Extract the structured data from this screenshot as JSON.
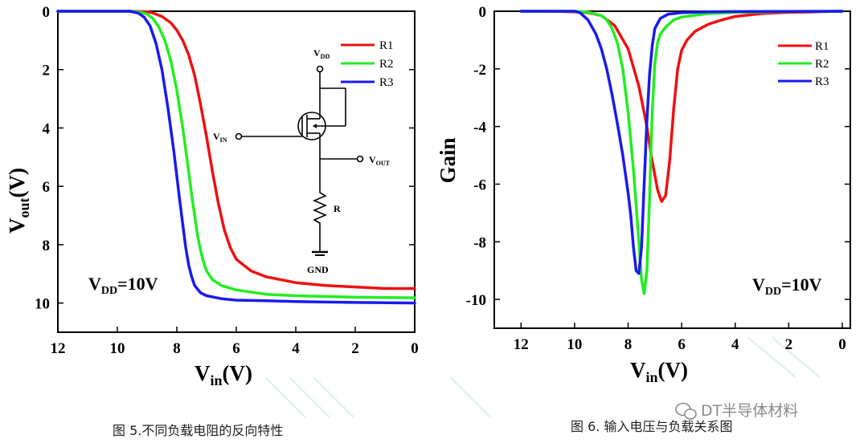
{
  "chart_data": [
    {
      "type": "line",
      "title": "",
      "xlabel": "V_in(V)",
      "ylabel": "V_out(V)",
      "xlim": [
        12,
        0
      ],
      "ylim": [
        0,
        11
      ],
      "x_reversed": true,
      "y_reversed": true,
      "xticks": [
        "12",
        "10",
        "8",
        "6",
        "4",
        "2",
        "0"
      ],
      "yticks": [
        "0",
        "2",
        "4",
        "6",
        "8",
        "10"
      ],
      "legend": {
        "position": "top-right",
        "entries": [
          "R1",
          "R2",
          "R3"
        ]
      },
      "annotation": {
        "prefix": "V",
        "sub": "DD",
        "suffix": "=10V"
      },
      "schematic": {
        "vdd": "DD",
        "vin": "IN",
        "vout": "OUT",
        "r": "R",
        "gnd": "GND"
      },
      "series": [
        {
          "name": "R1",
          "color": "#ee1111",
          "x": [
            12,
            10,
            9.5,
            9,
            8.8,
            8.5,
            8.2,
            8,
            7.8,
            7.6,
            7.4,
            7.2,
            7,
            6.8,
            6.6,
            6.4,
            6.2,
            6,
            5.5,
            5,
            4,
            3,
            2,
            1,
            0
          ],
          "y": [
            0,
            0,
            0,
            0.02,
            0.06,
            0.18,
            0.4,
            0.65,
            1.0,
            1.5,
            2.2,
            3.2,
            4.3,
            5.5,
            6.6,
            7.5,
            8.1,
            8.5,
            8.9,
            9.1,
            9.3,
            9.4,
            9.45,
            9.5,
            9.5
          ]
        },
        {
          "name": "R2",
          "color": "#22ee22",
          "x": [
            12,
            10,
            9.5,
            9.2,
            9,
            8.8,
            8.6,
            8.4,
            8.2,
            8,
            7.8,
            7.6,
            7.5,
            7.4,
            7.3,
            7.2,
            7.1,
            7,
            6.8,
            6.5,
            6,
            5,
            4,
            2,
            0
          ],
          "y": [
            0,
            0,
            0,
            0.04,
            0.1,
            0.25,
            0.55,
            1.0,
            1.7,
            2.7,
            4.0,
            5.5,
            6.3,
            7.0,
            7.7,
            8.2,
            8.6,
            8.9,
            9.2,
            9.4,
            9.55,
            9.7,
            9.75,
            9.8,
            9.82
          ]
        },
        {
          "name": "R3",
          "color": "#1a1aee",
          "x": [
            12,
            10,
            9.6,
            9.3,
            9.1,
            8.9,
            8.7,
            8.5,
            8.3,
            8.1,
            7.9,
            7.8,
            7.7,
            7.6,
            7.5,
            7.4,
            7.2,
            7,
            6.5,
            6,
            5,
            4,
            2,
            0
          ],
          "y": [
            0,
            0,
            0,
            0.06,
            0.2,
            0.5,
            1.1,
            2.0,
            3.3,
            4.8,
            6.5,
            7.3,
            8.1,
            8.7,
            9.1,
            9.4,
            9.65,
            9.75,
            9.85,
            9.9,
            9.92,
            9.95,
            9.98,
            10.0
          ]
        }
      ]
    },
    {
      "type": "line",
      "title": "",
      "xlabel": "V_in(V)",
      "ylabel": "Gain",
      "xlim": [
        13,
        -0.3
      ],
      "ylim": [
        0,
        -11
      ],
      "x_reversed": true,
      "y_reversed": true,
      "xticks": [
        "12",
        "10",
        "8",
        "6",
        "4",
        "2",
        "0"
      ],
      "yticks": [
        "0",
        "-2",
        "-4",
        "-6",
        "-8",
        "-10"
      ],
      "legend": {
        "position": "top-right",
        "entries": [
          "R1",
          "R2",
          "R3"
        ]
      },
      "annotation": {
        "prefix": "V",
        "sub": "DD",
        "suffix": "=10V"
      },
      "series": [
        {
          "name": "R1",
          "color": "#ee1111",
          "x": [
            12,
            11,
            10,
            9.5,
            9,
            8.5,
            8,
            7.6,
            7.3,
            7.1,
            6.9,
            6.75,
            6.6,
            6.45,
            6.3,
            6.15,
            6,
            5.8,
            5.5,
            5,
            4.5,
            4,
            3,
            2,
            1,
            0
          ],
          "y": [
            0,
            0,
            -0.02,
            -0.05,
            -0.15,
            -0.5,
            -1.3,
            -2.6,
            -4.0,
            -5.2,
            -6.2,
            -6.6,
            -6.4,
            -5.2,
            -3.4,
            -2.0,
            -1.35,
            -1.0,
            -0.7,
            -0.45,
            -0.3,
            -0.18,
            -0.08,
            -0.04,
            -0.02,
            0
          ]
        },
        {
          "name": "R2",
          "color": "#22ee22",
          "x": [
            12,
            10,
            9.5,
            9,
            8.8,
            8.6,
            8.4,
            8.2,
            8,
            7.8,
            7.6,
            7.5,
            7.4,
            7.3,
            7.2,
            7.1,
            7,
            6.9,
            6.8,
            6.6,
            6.3,
            6,
            5,
            4,
            2,
            0
          ],
          "y": [
            0,
            0,
            -0.03,
            -0.15,
            -0.3,
            -0.6,
            -1.1,
            -2.0,
            -3.5,
            -5.5,
            -8.0,
            -9.3,
            -9.8,
            -9.0,
            -6.5,
            -3.5,
            -1.8,
            -1.1,
            -0.8,
            -0.55,
            -0.3,
            -0.2,
            -0.08,
            -0.04,
            -0.01,
            0
          ]
        },
        {
          "name": "R3",
          "color": "#1a1aee",
          "x": [
            12,
            10,
            9.8,
            9.5,
            9.2,
            9,
            8.8,
            8.6,
            8.4,
            8.2,
            8,
            7.9,
            7.8,
            7.7,
            7.6,
            7.5,
            7.4,
            7.3,
            7.2,
            7.1,
            7,
            6.8,
            6.5,
            6,
            5,
            4,
            0
          ],
          "y": [
            0,
            0,
            -0.05,
            -0.3,
            -0.8,
            -1.3,
            -2.0,
            -2.9,
            -3.9,
            -5.0,
            -6.3,
            -7.1,
            -8.2,
            -9.0,
            -9.1,
            -8.2,
            -6.0,
            -3.8,
            -2.2,
            -1.2,
            -0.6,
            -0.25,
            -0.1,
            -0.05,
            -0.02,
            -0.01,
            0
          ]
        }
      ]
    }
  ],
  "captions": {
    "fig5": "图 5.不同负载电阻的反向特性",
    "fig6": "图 6. 输入电压与负载关系图"
  },
  "watermark": {
    "icon": "wechat-icon",
    "text": "DT半导体材料"
  }
}
